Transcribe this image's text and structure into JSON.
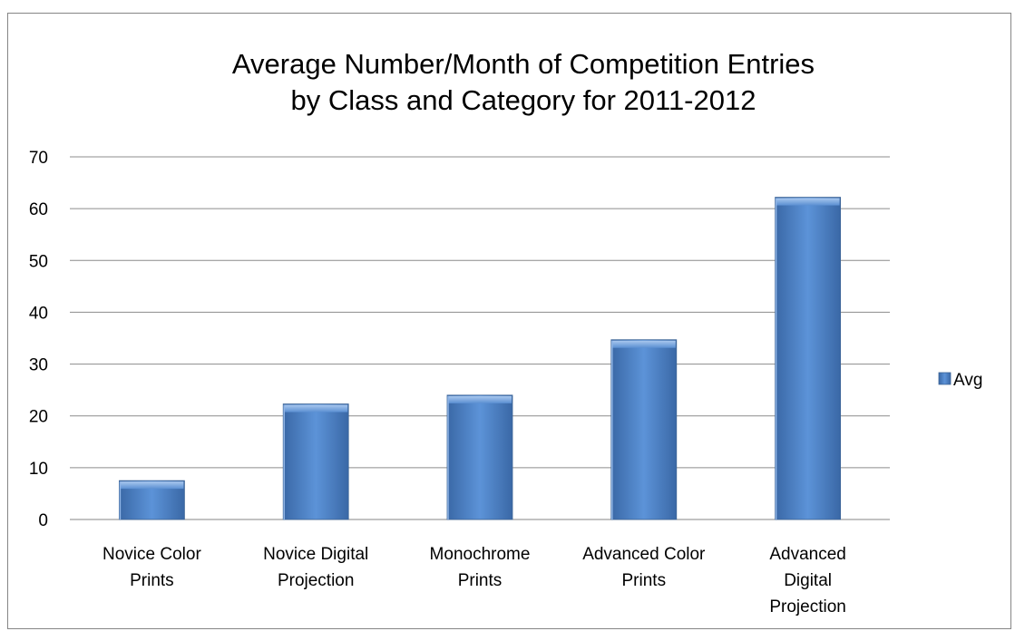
{
  "chart_data": {
    "type": "bar",
    "title_lines": [
      "Average Number/Month of Competition Entries",
      "by Class and Category for 2011-2012"
    ],
    "categories": [
      [
        "Novice Color",
        "Prints"
      ],
      [
        "Novice Digital",
        "Projection"
      ],
      [
        "Monochrome",
        "Prints"
      ],
      [
        "Advanced Color",
        "Prints"
      ],
      [
        "Advanced",
        "Digital",
        "Projection"
      ]
    ],
    "series": [
      {
        "name": "Avg",
        "values": [
          7.5,
          22.3,
          24,
          34.7,
          62.2
        ],
        "color": "#4f81bd"
      }
    ],
    "ylim": [
      0,
      70
    ],
    "yticks": [
      0,
      10,
      20,
      30,
      40,
      50,
      60,
      70
    ],
    "grid": true,
    "legend": "right",
    "xlabel": "",
    "ylabel": ""
  }
}
